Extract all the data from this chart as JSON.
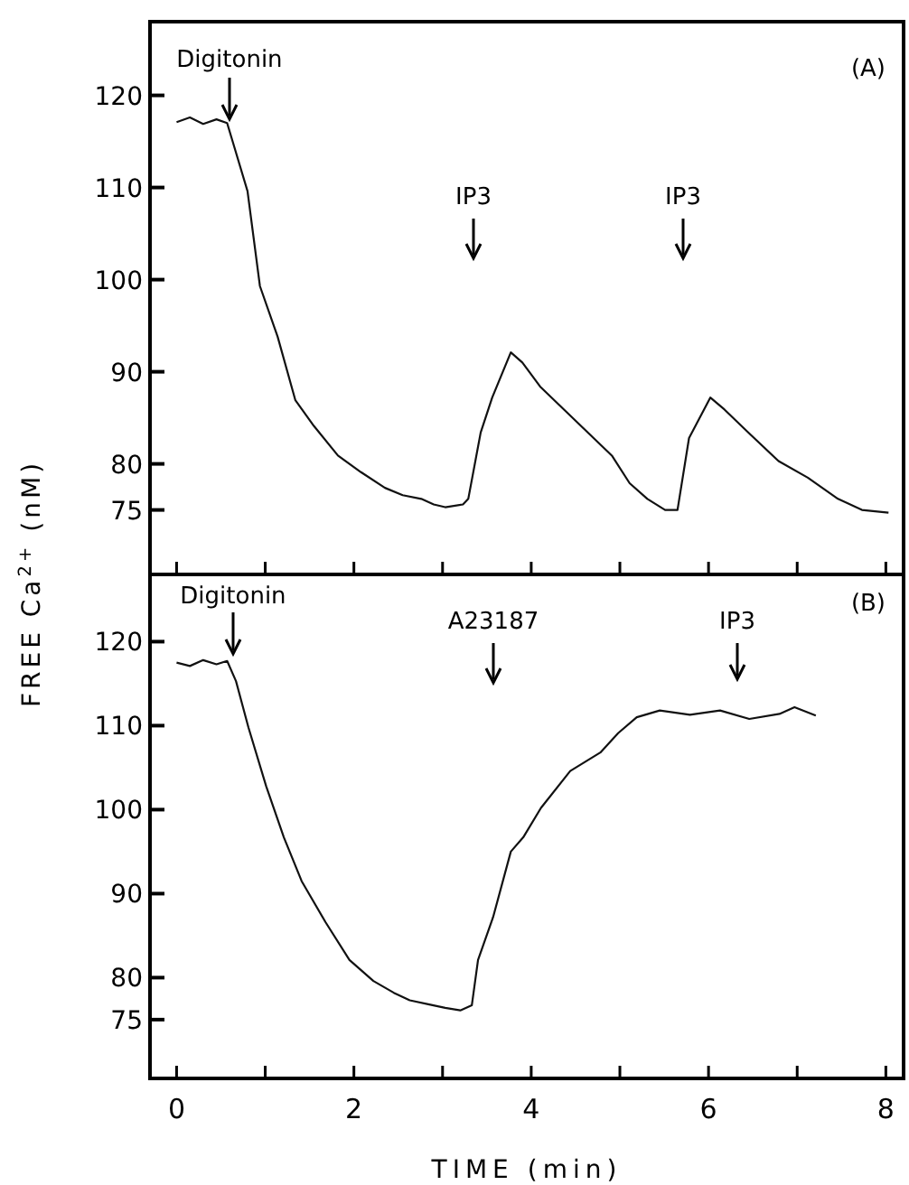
{
  "chart_data": [
    {
      "type": "line",
      "xlim": [
        -0.3,
        8.2
      ],
      "ylim": [
        68,
        128
      ],
      "xticks": [
        {
          "value": 0,
          "label": null
        },
        {
          "value": 1,
          "label": null
        },
        {
          "value": 2,
          "label": null
        },
        {
          "value": 3,
          "label": null
        },
        {
          "value": 4,
          "label": null
        },
        {
          "value": 5,
          "label": null
        },
        {
          "value": 6,
          "label": null
        },
        {
          "value": 7,
          "label": null
        },
        {
          "value": 8,
          "label": null
        }
      ],
      "yticks": [
        75,
        80,
        90,
        100,
        110,
        120
      ],
      "tick_labels": "y",
      "ylabel": "FREE Ca$^{2+}$ (nM)",
      "x": [
        0,
        0.15,
        0.3,
        0.45,
        0.57,
        0.8,
        0.94,
        1.14,
        1.34,
        1.55,
        1.82,
        2.08,
        2.35,
        2.55,
        2.76,
        2.9,
        3.03,
        3.23,
        3.29,
        3.43,
        3.56,
        3.77,
        3.9,
        4.1,
        4.37,
        4.64,
        4.91,
        5.11,
        5.31,
        5.51,
        5.65,
        5.78,
        6.02,
        6.18,
        6.45,
        6.79,
        7.12,
        7.46,
        7.73,
        8.03
      ],
      "series": [
        {
          "color": "#111111",
          "values": [
            117.1,
            117.6,
            116.9,
            117.4,
            117,
            109.6,
            99.3,
            93.8,
            86.9,
            84.1,
            80.9,
            79.1,
            77.4,
            76.6,
            76.2,
            75.6,
            75.3,
            75.6,
            76.2,
            83.4,
            87.2,
            92.1,
            91,
            88.4,
            85.9,
            83.4,
            80.9,
            77.9,
            76.2,
            75,
            75,
            82.8,
            87.2,
            85.9,
            83.4,
            80.3,
            78.5,
            76.2,
            75,
            74.7
          ]
        }
      ],
      "annotations": [
        "(A)",
        "Digitonin",
        "IP3",
        "IP3"
      ]
    },
    {
      "type": "line",
      "xlim": [
        -0.3,
        8.2
      ],
      "ylim": [
        68,
        128
      ],
      "xticks": [
        0,
        {
          "value": 1,
          "label": null
        },
        2,
        {
          "value": 3,
          "label": null
        },
        4,
        {
          "value": 5,
          "label": null
        },
        6,
        {
          "value": 7,
          "label": null
        },
        8
      ],
      "yticks": [
        75,
        80,
        90,
        100,
        110,
        120
      ],
      "xlabel": "TIME (min)",
      "x": [
        0,
        0.15,
        0.3,
        0.45,
        0.57,
        0.67,
        0.81,
        1.01,
        1.21,
        1.41,
        1.68,
        1.95,
        2.22,
        2.45,
        2.63,
        2.85,
        3.03,
        3.2,
        3.33,
        3.4,
        3.57,
        3.77,
        3.91,
        4.11,
        4.44,
        4.78,
        4.98,
        5.19,
        5.45,
        5.79,
        6.13,
        6.46,
        6.8,
        6.97,
        7.21
      ],
      "series": [
        {
          "color": "#111111",
          "values": [
            117.5,
            117.1,
            117.8,
            117.3,
            117.7,
            115.3,
            109.8,
            102.8,
            96.7,
            91.5,
            86.6,
            82.1,
            79.6,
            78.2,
            77.3,
            76.8,
            76.4,
            76.1,
            76.7,
            82.1,
            87.2,
            95,
            96.7,
            100.2,
            104.6,
            106.8,
            109.1,
            111,
            111.8,
            111.3,
            111.8,
            110.8,
            111.4,
            112.2,
            111.2
          ]
        }
      ],
      "annotations": [
        "(B)",
        "Digitonin",
        "A23187",
        "IP3"
      ]
    }
  ]
}
